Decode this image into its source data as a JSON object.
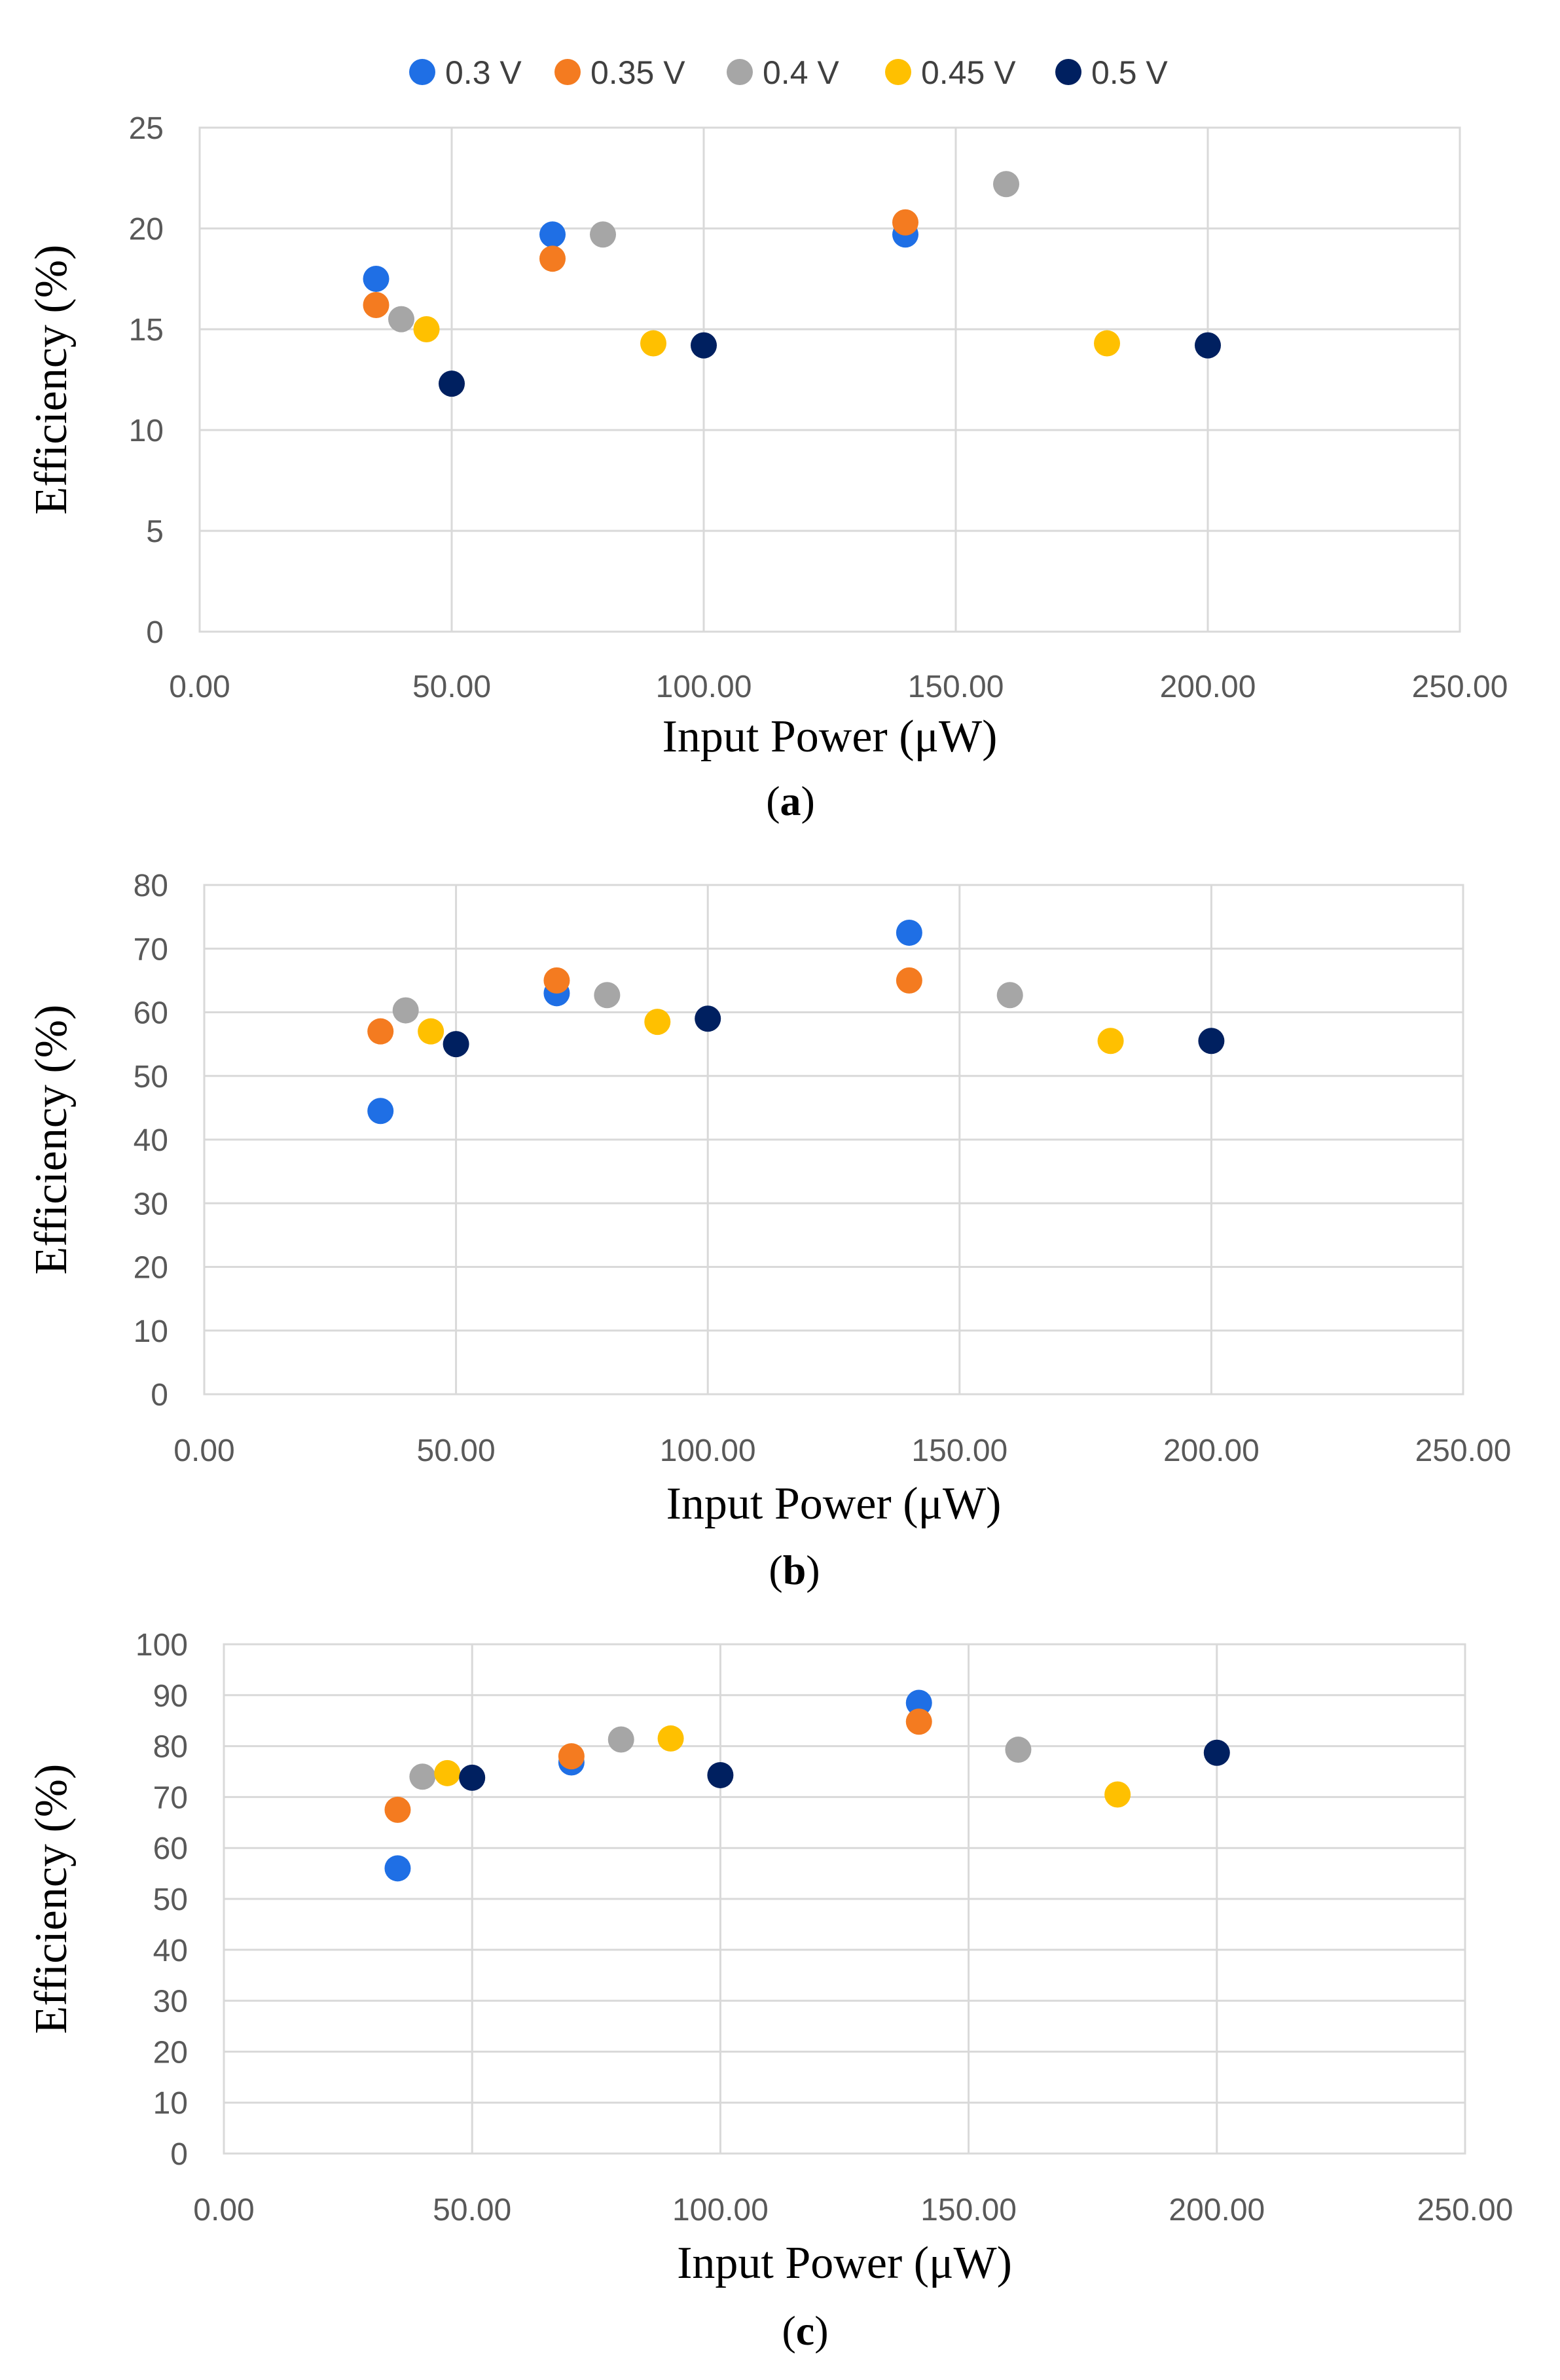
{
  "legend": {
    "series": [
      {
        "name": "0.3 V",
        "color": "#1f6fe5"
      },
      {
        "name": "0.35 V",
        "color": "#f47b20"
      },
      {
        "name": "0.4 V",
        "color": "#a6a6a6"
      },
      {
        "name": "0.45 V",
        "color": "#ffc000"
      },
      {
        "name": "0.5 V",
        "color": "#002060"
      }
    ]
  },
  "chart_data": [
    {
      "type": "scatter",
      "panel_label": "a",
      "title": "",
      "xlabel": "Input Power (μW)",
      "ylabel": "Efficiency  (%)",
      "xlim": [
        0,
        250
      ],
      "ylim": [
        0,
        25
      ],
      "x_ticks": [
        "0.00",
        "50.00",
        "100.00",
        "150.00",
        "200.00",
        "250.00"
      ],
      "y_ticks": [
        "0",
        "5",
        "10",
        "15",
        "20",
        "25"
      ],
      "grid": true,
      "legend_position": "top",
      "series": [
        {
          "name": "0.3 V",
          "points": [
            [
              35,
              17.5
            ],
            [
              70,
              19.7
            ],
            [
              140,
              19.7
            ]
          ]
        },
        {
          "name": "0.35 V",
          "points": [
            [
              35,
              16.2
            ],
            [
              70,
              18.5
            ],
            [
              140,
              20.3
            ]
          ]
        },
        {
          "name": "0.4 V",
          "points": [
            [
              40,
              15.5
            ],
            [
              80,
              19.7
            ],
            [
              160,
              22.2
            ]
          ]
        },
        {
          "name": "0.45 V",
          "points": [
            [
              45,
              15.0
            ],
            [
              90,
              14.3
            ],
            [
              180,
              14.3
            ]
          ]
        },
        {
          "name": "0.5 V",
          "points": [
            [
              50,
              12.3
            ],
            [
              100,
              14.2
            ],
            [
              200,
              14.2
            ]
          ]
        }
      ]
    },
    {
      "type": "scatter",
      "panel_label": "b",
      "title": "",
      "xlabel": "Input Power (μW)",
      "ylabel": "Efficiency  (%)",
      "xlim": [
        0,
        250
      ],
      "ylim": [
        0,
        80
      ],
      "x_ticks": [
        "0.00",
        "50.00",
        "100.00",
        "150.00",
        "200.00",
        "250.00"
      ],
      "y_ticks": [
        "0",
        "10",
        "20",
        "30",
        "40",
        "50",
        "60",
        "70",
        "80"
      ],
      "grid": true,
      "series": [
        {
          "name": "0.3 V",
          "points": [
            [
              35,
              44.5
            ],
            [
              70,
              63.0
            ],
            [
              140,
              72.5
            ]
          ]
        },
        {
          "name": "0.35 V",
          "points": [
            [
              35,
              57.0
            ],
            [
              70,
              65.0
            ],
            [
              140,
              65.0
            ]
          ]
        },
        {
          "name": "0.4 V",
          "points": [
            [
              40,
              60.3
            ],
            [
              80,
              62.7
            ],
            [
              160,
              62.7
            ]
          ]
        },
        {
          "name": "0.45 V",
          "points": [
            [
              45,
              57.0
            ],
            [
              90,
              58.5
            ],
            [
              180,
              55.5
            ]
          ]
        },
        {
          "name": "0.5 V",
          "points": [
            [
              50,
              55.0
            ],
            [
              100,
              59.0
            ],
            [
              200,
              55.5
            ]
          ]
        }
      ]
    },
    {
      "type": "scatter",
      "panel_label": "c",
      "title": "",
      "xlabel": "Input Power (μW)",
      "ylabel": "Efficiency  (%)",
      "xlim": [
        0,
        250
      ],
      "ylim": [
        0,
        100
      ],
      "x_ticks": [
        "0.00",
        "50.00",
        "100.00",
        "150.00",
        "200.00",
        "250.00"
      ],
      "y_ticks": [
        "0",
        "10",
        "20",
        "30",
        "40",
        "50",
        "60",
        "70",
        "80",
        "90",
        "100"
      ],
      "grid": true,
      "series": [
        {
          "name": "0.3 V",
          "points": [
            [
              35,
              56.0
            ],
            [
              70,
              76.8
            ],
            [
              140,
              88.5
            ]
          ]
        },
        {
          "name": "0.35 V",
          "points": [
            [
              35,
              67.5
            ],
            [
              70,
              78.0
            ],
            [
              140,
              84.8
            ]
          ]
        },
        {
          "name": "0.4 V",
          "points": [
            [
              40,
              74.0
            ],
            [
              80,
              81.3
            ],
            [
              160,
              79.3
            ]
          ]
        },
        {
          "name": "0.45 V",
          "points": [
            [
              45,
              74.7
            ],
            [
              90,
              81.5
            ],
            [
              180,
              70.5
            ]
          ]
        },
        {
          "name": "0.5 V",
          "points": [
            [
              50,
              73.8
            ],
            [
              100,
              74.3
            ],
            [
              200,
              78.7
            ]
          ]
        }
      ]
    }
  ]
}
